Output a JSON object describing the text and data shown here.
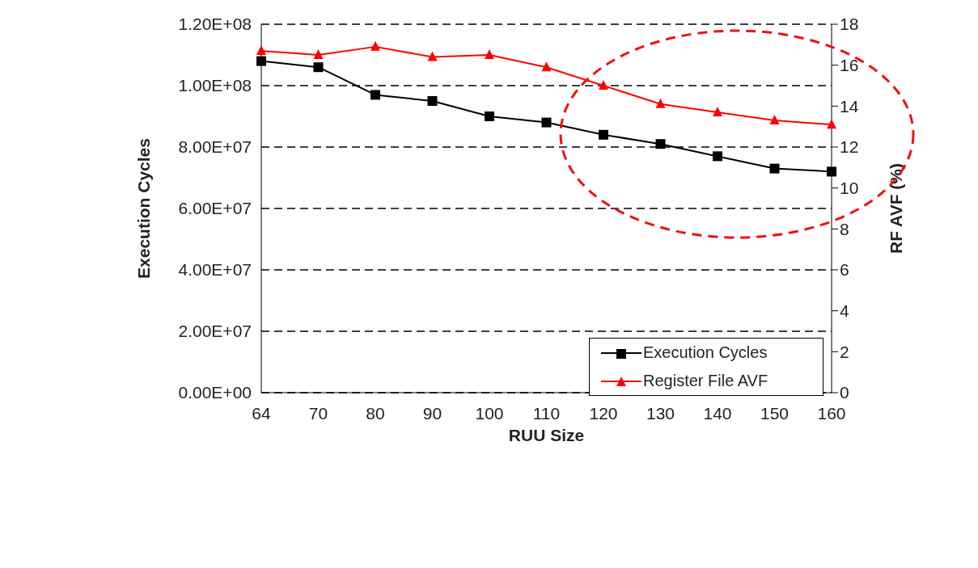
{
  "chart_data": {
    "type": "line",
    "xlabel": "RUU Size",
    "ylabel": "Execution Cycles",
    "y2label": "RF AVF (%)",
    "categories": [
      "64",
      "70",
      "80",
      "90",
      "100",
      "110",
      "120",
      "130",
      "140",
      "150",
      "160"
    ],
    "series": [
      {
        "name": "Execution Cycles",
        "color": "#000000",
        "marker": "square",
        "values": [
          108000000,
          106000000,
          97000000,
          95000000,
          90000000,
          88000000,
          84000000,
          81000000,
          77000000,
          73000000,
          72000000
        ]
      },
      {
        "name": "Register File AVF",
        "color": "#ff0000",
        "marker": "triangle",
        "axis": "y2",
        "values": [
          16.7,
          16.5,
          16.9,
          16.4,
          16.5,
          15.9,
          15.0,
          14.1,
          13.7,
          13.3,
          13.1
        ]
      }
    ],
    "ylim": [
      0,
      120000000
    ],
    "yticks": [
      {
        "value": 0,
        "label": "0.00E+00"
      },
      {
        "value": 20000000,
        "label": "2.00E+07"
      },
      {
        "value": 40000000,
        "label": "4.00E+07"
      },
      {
        "value": 60000000,
        "label": "6.00E+07"
      },
      {
        "value": 80000000,
        "label": "8.00E+07"
      },
      {
        "value": 100000000,
        "label": "1.00E+08"
      },
      {
        "value": 120000000,
        "label": "1.20E+08"
      }
    ],
    "y2lim": [
      0,
      18
    ],
    "y2ticks": [
      0,
      2,
      4,
      6,
      8,
      10,
      12,
      14,
      16,
      18
    ],
    "grid": "y",
    "line_style": "solid",
    "legend": "bottom right"
  }
}
